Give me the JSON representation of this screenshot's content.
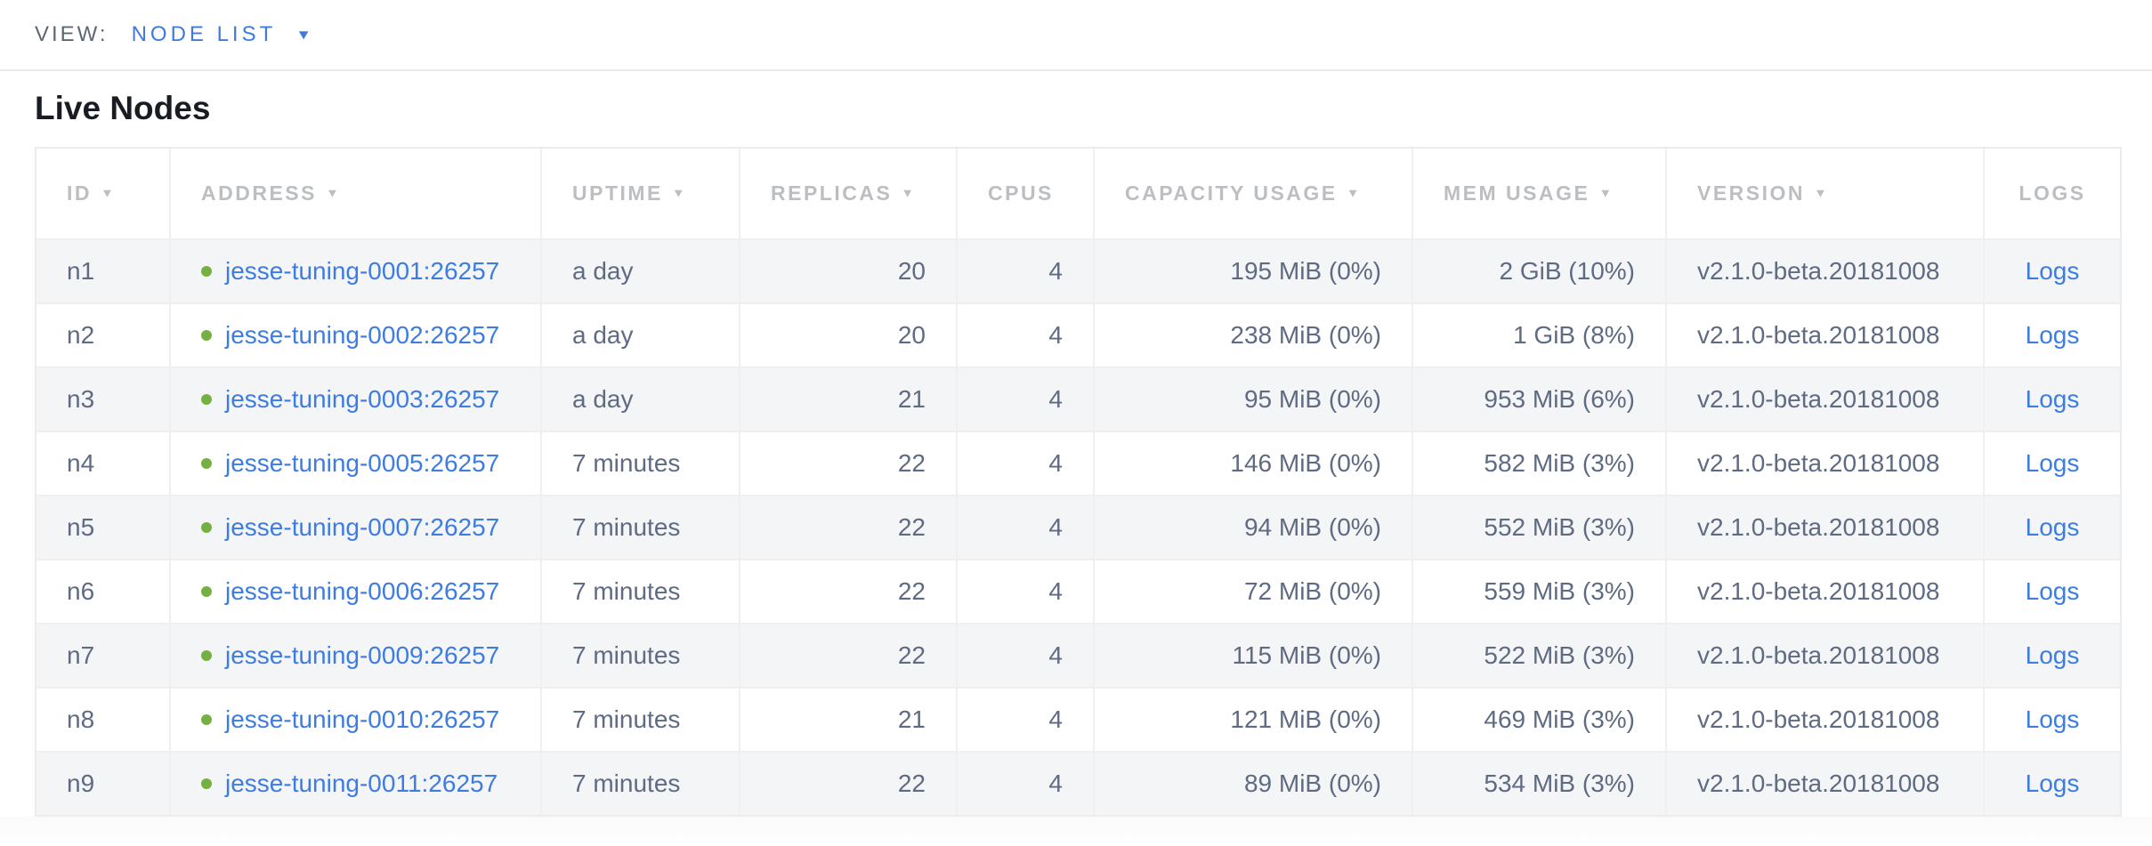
{
  "view_bar": {
    "label": "VIEW:",
    "selected": "NODE LIST"
  },
  "page": {
    "title": "Live Nodes"
  },
  "icons": {
    "sort_desc": "▼",
    "dropdown": "▼",
    "live_status": "green-dot"
  },
  "colors": {
    "accent_blue": "#3e7ce0",
    "live_green": "#76b043",
    "header_gray": "#bcbec1",
    "body_text": "#5f6a83",
    "row_stripe": "#f4f5f6"
  },
  "table": {
    "columns": [
      {
        "key": "id",
        "label": "ID",
        "sortable": true,
        "align": "left"
      },
      {
        "key": "address",
        "label": "ADDRESS",
        "sortable": true,
        "align": "left"
      },
      {
        "key": "uptime",
        "label": "UPTIME",
        "sortable": true,
        "align": "left"
      },
      {
        "key": "replicas",
        "label": "REPLICAS",
        "sortable": true,
        "align": "left"
      },
      {
        "key": "cpus",
        "label": "CPUS",
        "sortable": false,
        "align": "left"
      },
      {
        "key": "capacity",
        "label": "CAPACITY USAGE",
        "sortable": true,
        "align": "left"
      },
      {
        "key": "mem",
        "label": "MEM USAGE",
        "sortable": true,
        "align": "left"
      },
      {
        "key": "version",
        "label": "VERSION",
        "sortable": true,
        "align": "left"
      },
      {
        "key": "logs",
        "label": "LOGS",
        "sortable": false,
        "align": "center"
      }
    ],
    "cell_align": {
      "id": "left",
      "address": "left",
      "uptime": "left",
      "replicas": "right",
      "cpus": "right",
      "capacity": "right",
      "mem": "right",
      "version": "left",
      "logs": "center"
    },
    "rows": [
      {
        "id": "n1",
        "status": "live",
        "address": "jesse-tuning-0001:26257",
        "uptime": "a day",
        "replicas": "20",
        "cpus": "4",
        "capacity": "195 MiB (0%)",
        "mem": "2 GiB (10%)",
        "version": "v2.1.0-beta.20181008",
        "logs": "Logs"
      },
      {
        "id": "n2",
        "status": "live",
        "address": "jesse-tuning-0002:26257",
        "uptime": "a day",
        "replicas": "20",
        "cpus": "4",
        "capacity": "238 MiB (0%)",
        "mem": "1 GiB (8%)",
        "version": "v2.1.0-beta.20181008",
        "logs": "Logs"
      },
      {
        "id": "n3",
        "status": "live",
        "address": "jesse-tuning-0003:26257",
        "uptime": "a day",
        "replicas": "21",
        "cpus": "4",
        "capacity": "95 MiB (0%)",
        "mem": "953 MiB (6%)",
        "version": "v2.1.0-beta.20181008",
        "logs": "Logs"
      },
      {
        "id": "n4",
        "status": "live",
        "address": "jesse-tuning-0005:26257",
        "uptime": "7 minutes",
        "replicas": "22",
        "cpus": "4",
        "capacity": "146 MiB (0%)",
        "mem": "582 MiB (3%)",
        "version": "v2.1.0-beta.20181008",
        "logs": "Logs"
      },
      {
        "id": "n5",
        "status": "live",
        "address": "jesse-tuning-0007:26257",
        "uptime": "7 minutes",
        "replicas": "22",
        "cpus": "4",
        "capacity": "94 MiB (0%)",
        "mem": "552 MiB (3%)",
        "version": "v2.1.0-beta.20181008",
        "logs": "Logs"
      },
      {
        "id": "n6",
        "status": "live",
        "address": "jesse-tuning-0006:26257",
        "uptime": "7 minutes",
        "replicas": "22",
        "cpus": "4",
        "capacity": "72 MiB (0%)",
        "mem": "559 MiB (3%)",
        "version": "v2.1.0-beta.20181008",
        "logs": "Logs"
      },
      {
        "id": "n7",
        "status": "live",
        "address": "jesse-tuning-0009:26257",
        "uptime": "7 minutes",
        "replicas": "22",
        "cpus": "4",
        "capacity": "115 MiB (0%)",
        "mem": "522 MiB (3%)",
        "version": "v2.1.0-beta.20181008",
        "logs": "Logs"
      },
      {
        "id": "n8",
        "status": "live",
        "address": "jesse-tuning-0010:26257",
        "uptime": "7 minutes",
        "replicas": "21",
        "cpus": "4",
        "capacity": "121 MiB (0%)",
        "mem": "469 MiB (3%)",
        "version": "v2.1.0-beta.20181008",
        "logs": "Logs"
      },
      {
        "id": "n9",
        "status": "live",
        "address": "jesse-tuning-0011:26257",
        "uptime": "7 minutes",
        "replicas": "22",
        "cpus": "4",
        "capacity": "89 MiB (0%)",
        "mem": "534 MiB (3%)",
        "version": "v2.1.0-beta.20181008",
        "logs": "Logs"
      }
    ]
  }
}
